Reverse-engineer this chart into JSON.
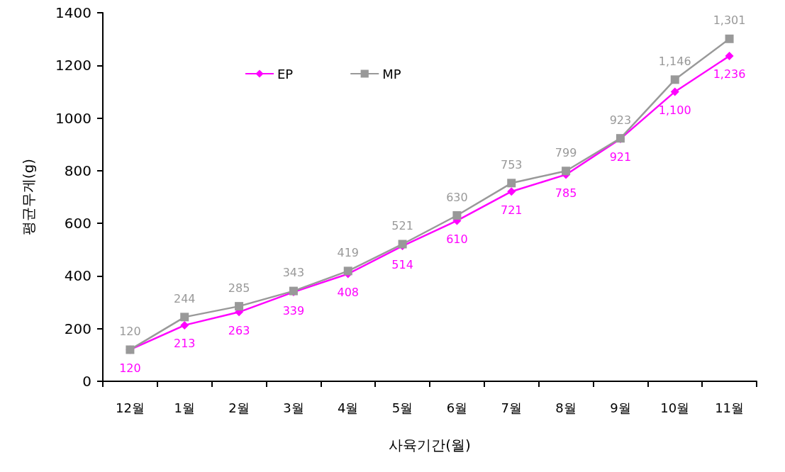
{
  "chart_data": {
    "type": "line",
    "xlabel": "사육기간(월)",
    "ylabel": "평균무게(g)",
    "categories": [
      "12월",
      "1월",
      "2월",
      "3월",
      "4월",
      "5월",
      "6월",
      "7월",
      "8월",
      "9월",
      "10월",
      "11월"
    ],
    "series": [
      {
        "name": "EP",
        "color": "#ff00ff",
        "marker": "diamond",
        "values": [
          120,
          213,
          263,
          339,
          408,
          514,
          610,
          721,
          785,
          921,
          1100,
          1236
        ],
        "value_labels": [
          "120",
          "213",
          "263",
          "339",
          "408",
          "514",
          "610",
          "721",
          "785",
          "921",
          "1,100",
          "1,236"
        ]
      },
      {
        "name": "MP",
        "color": "#999999",
        "marker": "square",
        "values": [
          120,
          244,
          285,
          343,
          419,
          521,
          630,
          753,
          799,
          923,
          1146,
          1301
        ],
        "value_labels": [
          "120",
          "244",
          "285",
          "343",
          "419",
          "521",
          "630",
          "753",
          "799",
          "923",
          "1,146",
          "1,301"
        ]
      }
    ],
    "ylim": [
      0,
      1400
    ],
    "yticks": [
      0,
      200,
      400,
      600,
      800,
      1000,
      1200,
      1400
    ],
    "grid": false,
    "legend": "top left",
    "line_style": "solid"
  }
}
